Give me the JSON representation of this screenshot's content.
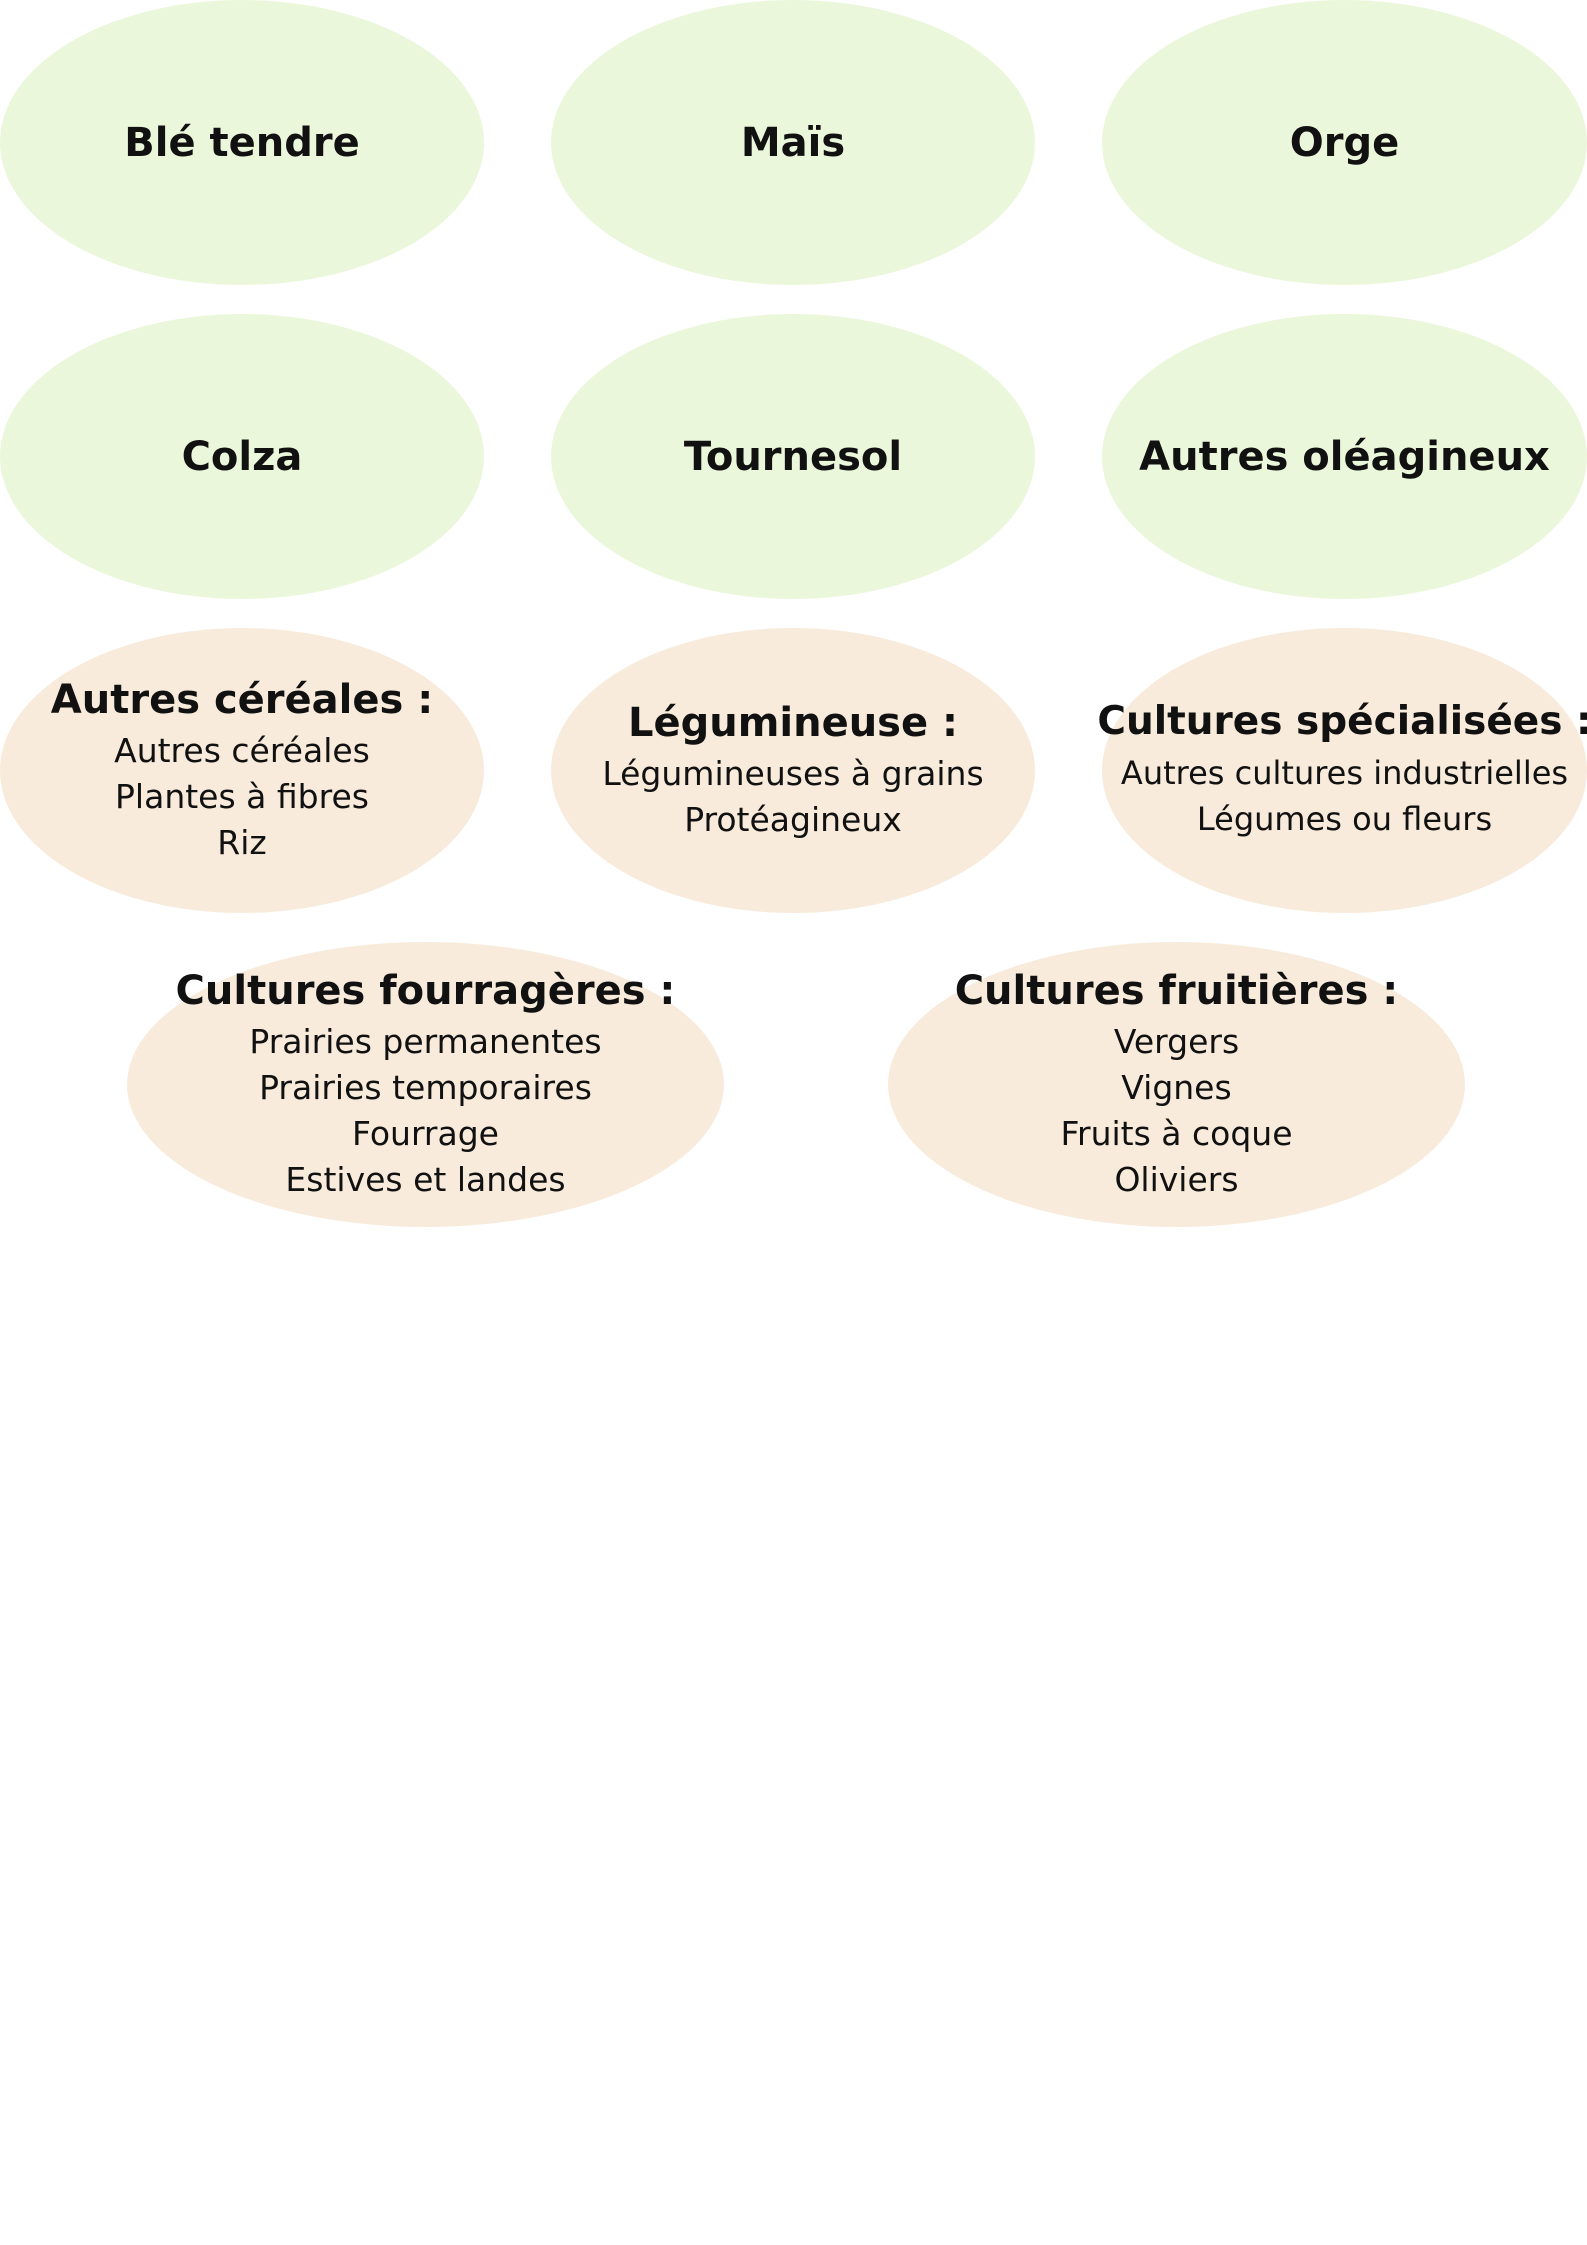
{
  "single_nodes": [
    {
      "label": "Blé tendre"
    },
    {
      "label": "Maïs"
    },
    {
      "label": "Orge"
    },
    {
      "label": "Colza"
    },
    {
      "label": "Tournesol"
    },
    {
      "label": "Autres oléagineux"
    }
  ],
  "group_nodes": [
    {
      "title": "Autres céréales :",
      "items": [
        "Autres céréales",
        "Plantes à fibres",
        "Riz"
      ]
    },
    {
      "title": "Légumineuse :",
      "items": [
        "Légumineuses à grains",
        "Protéagineux"
      ]
    },
    {
      "title": "Cultures spécialisées :",
      "items": [
        "Autres cultures industrielles",
        "Légumes ou fleurs"
      ]
    },
    {
      "title": "Cultures fourragères :",
      "items": [
        "Prairies permanentes",
        "Prairies temporaires",
        "Fourrage",
        "Estives et landes"
      ]
    },
    {
      "title": "Cultures fruitières :",
      "items": [
        "Vergers",
        "Vignes",
        "Fruits à coque",
        "Oliviers"
      ]
    }
  ],
  "colors": {
    "single_fill": "#ebf7db",
    "group_fill": "#f8ebdb",
    "text": "#111111",
    "background": "#ffffff"
  }
}
